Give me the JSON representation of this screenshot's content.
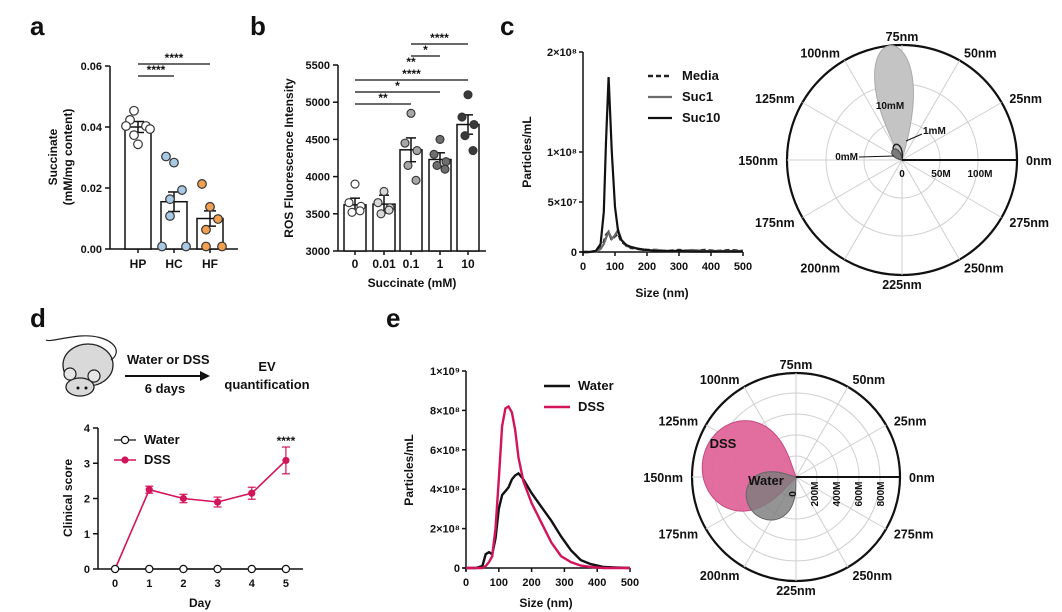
{
  "panels": [
    "a",
    "b",
    "c",
    "d",
    "e"
  ],
  "colors": {
    "hp": "#ffffff",
    "hc": "#a9c9e4",
    "hf": "#f0a050",
    "dss": "#d2145a",
    "water": "#111111",
    "suc0": "#ffffff",
    "suc001": "#d8d8d8",
    "suc01": "#a6a6a6",
    "suc1": "#6e6e6e",
    "suc10": "#3a3a3a"
  },
  "chart_data": [
    {
      "id": "a",
      "type": "bar",
      "ylabel": [
        "Succinate",
        "(mM/mg content)"
      ],
      "ylim": [
        0,
        0.06
      ],
      "yticks": [
        "0.00",
        "0.02",
        "0.04",
        "0.06"
      ],
      "categories": [
        "HP",
        "HC",
        "HF"
      ],
      "values": [
        0.04,
        0.0155,
        0.01
      ],
      "errors": [
        0.0018,
        0.0032,
        0.0025
      ],
      "points": [
        [
          0.042,
          0.034,
          0.04,
          0.037,
          0.045,
          0.039,
          0.04
        ],
        [
          0.03,
          0.028,
          0.019,
          0.016,
          0.0105,
          0.0005,
          0.0005
        ],
        [
          0.021,
          0.0135,
          0.0095,
          0.006,
          0.0005,
          0.0005
        ]
      ],
      "significance": [
        {
          "from": 0,
          "to": 1,
          "label": "****"
        },
        {
          "from": 0,
          "to": 2,
          "label": "****"
        }
      ]
    },
    {
      "id": "b",
      "type": "bar",
      "ylabel": "ROS Fluorescence Intensity",
      "xlabel": "Succinate (mM)",
      "ylim": [
        3000,
        5500
      ],
      "yticks": [
        "3000",
        "3500",
        "4000",
        "4500",
        "5000",
        "5500"
      ],
      "categories": [
        "0",
        "0.01",
        "0.1",
        "1",
        "10"
      ],
      "values": [
        3620,
        3630,
        4360,
        4230,
        4700
      ],
      "errors": [
        90,
        120,
        160,
        90,
        130
      ],
      "points": [
        [
          3900,
          3650,
          3600,
          3520,
          3540
        ],
        [
          3800,
          3650,
          3580,
          3500,
          3550
        ],
        [
          4850,
          4450,
          4350,
          4150,
          3950
        ],
        [
          4500,
          4300,
          4200,
          4150,
          4100
        ],
        [
          5100,
          4800,
          4700,
          4550,
          4350
        ]
      ],
      "significance": [
        {
          "to": 4,
          "label": "****"
        },
        {
          "to": 3,
          "label": "*"
        },
        {
          "to": 2,
          "label": "**"
        },
        {
          "to": 4,
          "label": "****"
        },
        {
          "to": 3,
          "label": "*"
        },
        {
          "to": 2,
          "label": "**"
        }
      ]
    },
    {
      "id": "c-line",
      "type": "line",
      "ylabel": "Particles/mL",
      "xlabel": "Size (nm)",
      "xlim": [
        0,
        500
      ],
      "ylim": [
        0,
        200000000
      ],
      "xticks": [
        "0",
        "100",
        "200",
        "300",
        "400",
        "500"
      ],
      "yticks": [
        "0",
        "5×10⁷",
        "1×10⁸",
        "2×10⁸"
      ],
      "x": [
        0,
        20,
        40,
        55,
        65,
        72,
        80,
        90,
        100,
        110,
        120,
        135,
        150,
        175,
        200,
        230,
        260,
        300,
        340,
        380,
        420,
        460,
        500
      ],
      "series": [
        {
          "name": "Media",
          "values": [
            0,
            0,
            1000000,
            4000000,
            10000000,
            17000000,
            20000000,
            12000000,
            16000000,
            18000000,
            10000000,
            7000000,
            4000000,
            3000000,
            2000000,
            2000000,
            1000000,
            2000000,
            1000000,
            2000000,
            1000000,
            2000000,
            1000000
          ]
        },
        {
          "name": "Suc1",
          "values": [
            0,
            0,
            500000,
            3000000,
            8000000,
            14000000,
            20000000,
            13000000,
            17000000,
            22000000,
            12000000,
            6000000,
            5000000,
            3000000,
            1000000,
            2000000,
            1000000,
            1000000,
            2000000,
            1000000,
            1000000,
            1000000,
            1000000
          ]
        },
        {
          "name": "Suc10",
          "values": [
            0,
            0,
            1000000,
            8000000,
            40000000,
            110000000,
            175000000,
            100000000,
            45000000,
            20000000,
            12000000,
            7000000,
            5000000,
            3000000,
            2000000,
            1000000,
            1000000,
            1000000,
            500000,
            500000,
            500000,
            500000,
            500000
          ]
        }
      ]
    },
    {
      "id": "c-polar",
      "type": "polar",
      "angle_labels": [
        "0nm",
        "25nm",
        "50nm",
        "75nm",
        "100nm",
        "125nm",
        "150nm",
        "175nm",
        "200nm",
        "225nm",
        "250nm",
        "275nm"
      ],
      "radial_labels": [
        "0",
        "50M",
        "100M"
      ],
      "radial_max": 150000000,
      "series": [
        {
          "name": "10mM",
          "center_angle_nm": 80,
          "spread_nm": 18,
          "radius": 150000000
        },
        {
          "name": "1mM",
          "center_angle_nm": 95,
          "spread_nm": 25,
          "radius": 22000000
        },
        {
          "name": "0mM",
          "center_angle_nm": 110,
          "spread_nm": 30,
          "radius": 18000000
        }
      ]
    },
    {
      "id": "d",
      "type": "line",
      "diagram": {
        "arrow_top": "Water or DSS",
        "arrow_bottom": "6 days",
        "outcome": [
          "EV",
          "quantification"
        ]
      },
      "ylabel": "Clinical score",
      "xlabel": "Day",
      "xlim": [
        -0.5,
        5.5
      ],
      "ylim": [
        0,
        4
      ],
      "xticks": [
        "0",
        "1",
        "2",
        "3",
        "4",
        "5"
      ],
      "yticks": [
        "0",
        "1",
        "2",
        "3",
        "4"
      ],
      "x": [
        0,
        1,
        2,
        3,
        4,
        5
      ],
      "series": [
        {
          "name": "Water",
          "values": [
            0,
            0,
            0,
            0,
            0,
            0
          ],
          "errors": [
            0,
            0,
            0,
            0,
            0,
            0
          ]
        },
        {
          "name": "DSS",
          "values": [
            0,
            2.25,
            2.0,
            1.9,
            2.15,
            3.08
          ],
          "errors": [
            0,
            0.1,
            0.12,
            0.14,
            0.17,
            0.38
          ]
        }
      ],
      "annotation": {
        "x": 5,
        "label": "****"
      }
    },
    {
      "id": "e-line",
      "type": "line",
      "ylabel": "Particles/mL",
      "xlabel": "Size (nm)",
      "xlim": [
        0,
        500
      ],
      "ylim": [
        0,
        1000000000
      ],
      "xticks": [
        "0",
        "100",
        "200",
        "300",
        "400",
        "500"
      ],
      "yticks": [
        "0",
        "2×10⁸",
        "4×10⁸",
        "6×10⁸",
        "8×10⁸",
        "1×10⁹"
      ],
      "x": [
        0,
        30,
        50,
        60,
        70,
        80,
        90,
        100,
        110,
        120,
        130,
        140,
        150,
        160,
        175,
        200,
        230,
        260,
        290,
        320,
        350,
        380,
        420,
        460,
        500
      ],
      "series": [
        {
          "name": "Water",
          "values": [
            0,
            0,
            10000000,
            70000000,
            80000000,
            70000000,
            150000000,
            300000000,
            370000000,
            390000000,
            410000000,
            450000000,
            470000000,
            480000000,
            450000000,
            380000000,
            310000000,
            240000000,
            160000000,
            90000000,
            40000000,
            20000000,
            5000000,
            2000000,
            0
          ]
        },
        {
          "name": "DSS",
          "values": [
            0,
            0,
            0,
            10000000,
            30000000,
            60000000,
            200000000,
            450000000,
            720000000,
            810000000,
            820000000,
            790000000,
            700000000,
            560000000,
            440000000,
            330000000,
            230000000,
            130000000,
            60000000,
            30000000,
            12000000,
            5000000,
            0,
            0,
            0
          ]
        }
      ]
    },
    {
      "id": "e-polar",
      "type": "polar",
      "angle_labels": [
        "0nm",
        "25nm",
        "50nm",
        "75nm",
        "100nm",
        "125nm",
        "150nm",
        "175nm",
        "200nm",
        "225nm",
        "250nm",
        "275nm"
      ],
      "radial_labels": [
        "0",
        "200M",
        "400M",
        "600M",
        "800M"
      ],
      "radial_max": 900000000,
      "series": [
        {
          "name": "DSS",
          "center_angle_nm": 140,
          "spread_nm": 50,
          "radius": 820000000
        },
        {
          "name": "Water",
          "center_angle_nm": 180,
          "spread_nm": 45,
          "radius": 480000000
        }
      ]
    }
  ]
}
